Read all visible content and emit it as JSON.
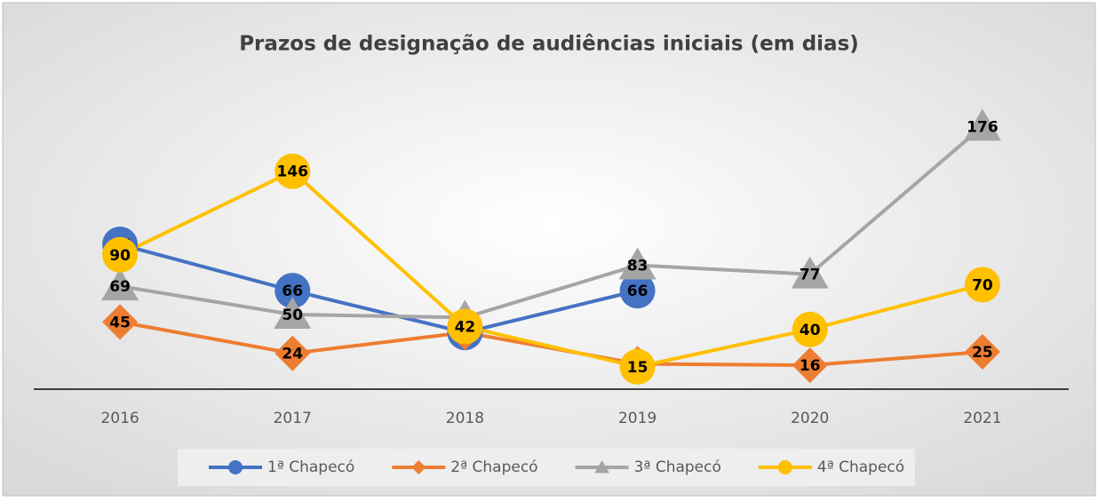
{
  "chart_data": {
    "type": "line",
    "title": "Prazos de designação de audiências iniciais (em dias)",
    "categories": [
      "2016",
      "2017",
      "2018",
      "2019",
      "2020",
      "2021"
    ],
    "ylim": [
      0,
      200
    ],
    "series": [
      {
        "name": "1ª Chapecó",
        "color": "#4472c4",
        "marker": "circle",
        "values": [
          97,
          66,
          38,
          66,
          null,
          null
        ]
      },
      {
        "name": "2ª Chapecó",
        "color": "#ed7d31",
        "marker": "diamond",
        "values": [
          45,
          24,
          38,
          17,
          16,
          25
        ]
      },
      {
        "name": "3ª Chapecó",
        "color": "#a5a5a5",
        "marker": "triangle",
        "values": [
          69,
          50,
          48,
          83,
          77,
          176
        ]
      },
      {
        "name": "4ª Chapecó",
        "color": "#ffc000",
        "marker": "circle",
        "values": [
          90,
          146,
          42,
          15,
          40,
          70
        ]
      }
    ],
    "legend": "bottom"
  }
}
